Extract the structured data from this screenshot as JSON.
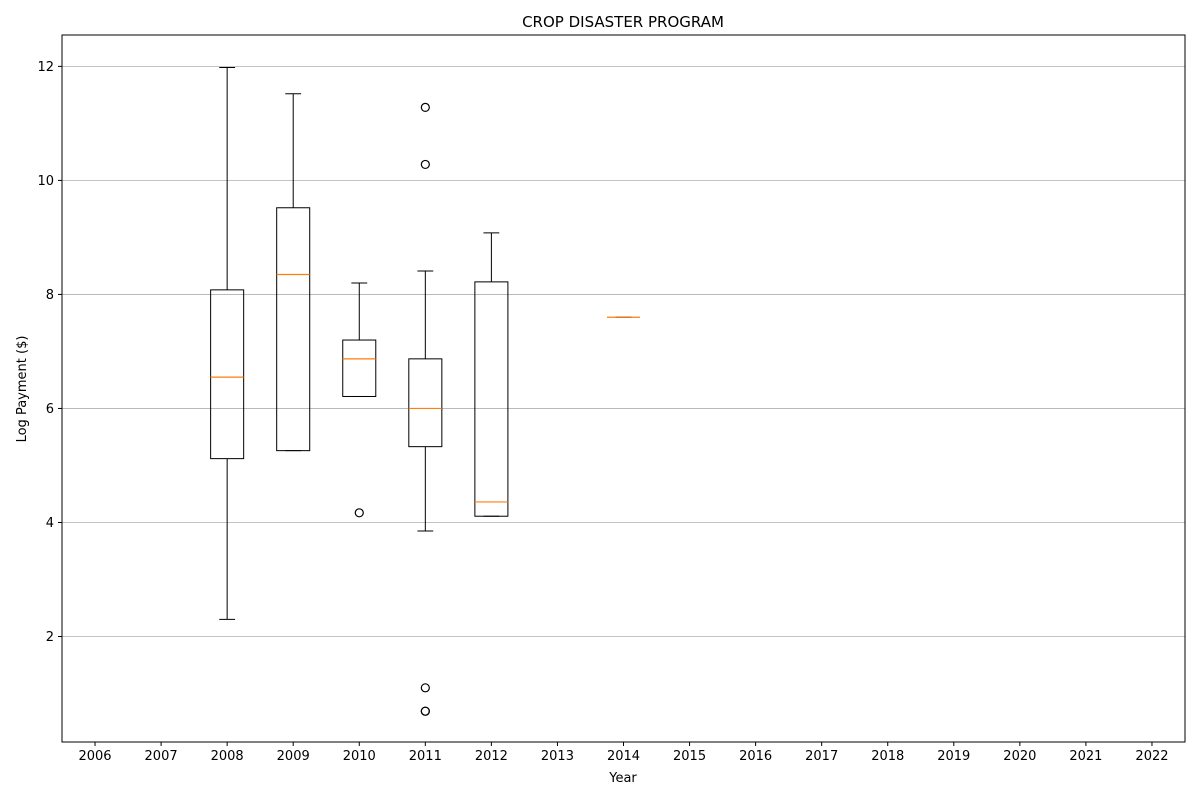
{
  "chart_data": {
    "type": "boxplot",
    "title": "CROP DISASTER PROGRAM",
    "xlabel": "Year",
    "ylabel": "Log Payment ($)",
    "categories": [
      "2006",
      "2007",
      "2008",
      "2009",
      "2010",
      "2011",
      "2012",
      "2013",
      "2014",
      "2015",
      "2016",
      "2017",
      "2018",
      "2019",
      "2020",
      "2021",
      "2022"
    ],
    "yticks": [
      2,
      4,
      6,
      8,
      10,
      12
    ],
    "ylim": [
      0.15,
      12.55
    ],
    "grid": "horizontal",
    "colors": {
      "box": "#000000",
      "median": "#ff7f0e",
      "grid": "#b0b0b0",
      "flier": "#000000"
    },
    "boxes": [
      {
        "category": "2008",
        "whisker_low": 2.3,
        "q1": 5.12,
        "median": 6.55,
        "q3": 8.08,
        "whisker_high": 11.98,
        "fliers": []
      },
      {
        "category": "2009",
        "whisker_low": 5.26,
        "q1": 5.26,
        "median": 8.35,
        "q3": 9.52,
        "whisker_high": 11.52,
        "fliers": []
      },
      {
        "category": "2010",
        "whisker_low": 6.21,
        "q1": 6.21,
        "median": 6.87,
        "q3": 7.2,
        "whisker_high": 8.2,
        "fliers": [
          4.17
        ]
      },
      {
        "category": "2011",
        "whisker_low": 3.85,
        "q1": 5.33,
        "median": 6.0,
        "q3": 6.87,
        "whisker_high": 8.41,
        "fliers": [
          11.28,
          10.28,
          1.1,
          0.69,
          0.69
        ]
      },
      {
        "category": "2012",
        "whisker_low": 4.11,
        "q1": 4.11,
        "median": 4.36,
        "q3": 8.22,
        "whisker_high": 9.08,
        "fliers": []
      },
      {
        "category": "2014",
        "whisker_low": 7.6,
        "q1": 7.6,
        "median": 7.6,
        "q3": 7.6,
        "whisker_high": 7.6,
        "fliers": []
      }
    ]
  }
}
